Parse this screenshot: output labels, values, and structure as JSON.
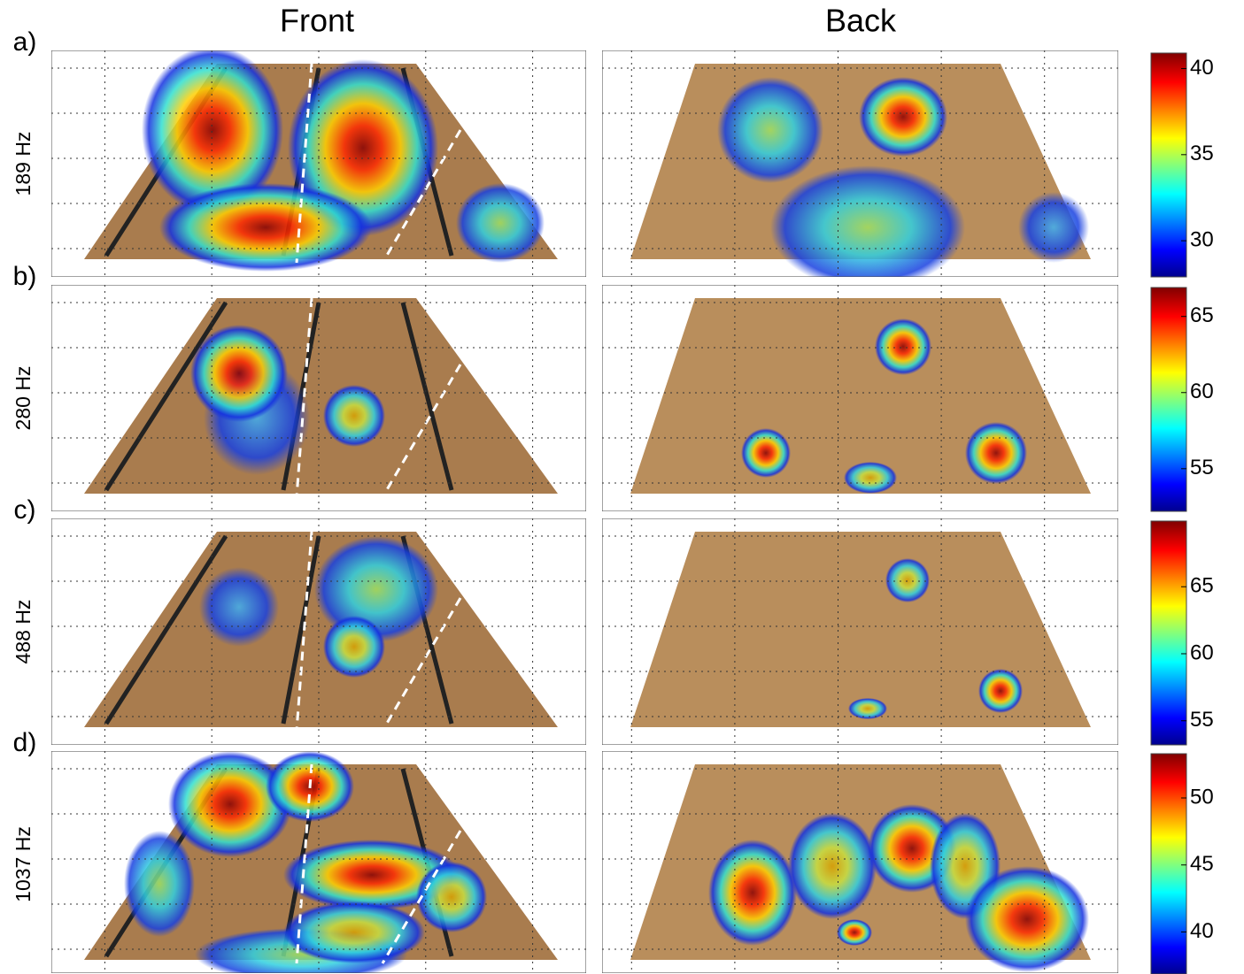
{
  "columns": [
    "Front",
    "Back"
  ],
  "rows": [
    {
      "letter": "a)",
      "frequency": "189 Hz",
      "colorbar": {
        "lim": [
          27.9,
          40.9
        ],
        "ticks": [
          30,
          35,
          40
        ]
      }
    },
    {
      "letter": "b)",
      "frequency": "280 Hz",
      "colorbar": {
        "lim": [
          52.2,
          66.9
        ],
        "ticks": [
          55,
          60,
          65
        ]
      }
    },
    {
      "letter": "c)",
      "frequency": "488 Hz",
      "colorbar": {
        "lim": [
          53.2,
          69.9
        ],
        "ticks": [
          55,
          60,
          65
        ]
      }
    },
    {
      "letter": "d)",
      "frequency": "1037 Hz",
      "colorbar": {
        "lim": [
          36.6,
          53.3
        ],
        "ticks": [
          40,
          45,
          50
        ]
      }
    }
  ]
}
